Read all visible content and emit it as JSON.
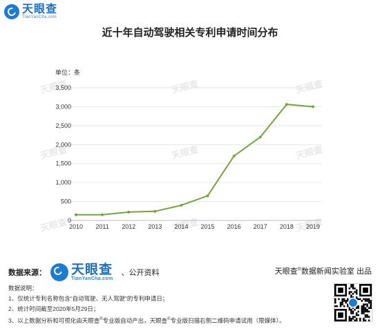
{
  "brand": {
    "name": "天眼查",
    "domain": "TianYanCha.com"
  },
  "colors": {
    "line": "#76a33b",
    "brand": "#1d6fbf",
    "grid": "#e5e5e5"
  },
  "chart_data": {
    "type": "line",
    "title": "近十年自动驾驶相关专利申请时间分布",
    "unit_label": "单位：条",
    "xlabel": "",
    "ylabel": "",
    "x": [
      "2010",
      "2011",
      "2012",
      "2013",
      "2014",
      "2015",
      "2016",
      "2017",
      "2018",
      "2019"
    ],
    "series": [
      {
        "values": [
          150,
          150,
          220,
          240,
          400,
          650,
          1700,
          2200,
          3060,
          3000
        ]
      }
    ],
    "ylim": [
      0,
      3500
    ],
    "yticks": [
      0,
      500,
      1000,
      1500,
      2000,
      2500,
      3000,
      3500
    ],
    "ytick_labels": [
      "0",
      "500",
      "1,000",
      "1,500",
      "2,000",
      "2,500",
      "3,000",
      "3,500"
    ],
    "grid": true,
    "markers": true
  },
  "footer": {
    "source_label": "数据来源：",
    "public_label": "、公开资料",
    "credit_prefix": "天眼查",
    "credit_reg": "®",
    "credit_suffix": "数据新闻实验室 出品",
    "notes_title": "数据说明：",
    "note1": "1、仅统计专利名称包含“自动驾驶、无人驾驶”的专利申请日；",
    "note2": "2、统计时间截至2020年5月29日；",
    "note3_a": "3、以上数据分析和可视化由天眼查",
    "note3_reg1": "®",
    "note3_b": "专业版自动产出，天眼查",
    "note3_reg2": "®",
    "note3_c": "专业版扫描右侧二维码申请试用（限媒体）。"
  }
}
